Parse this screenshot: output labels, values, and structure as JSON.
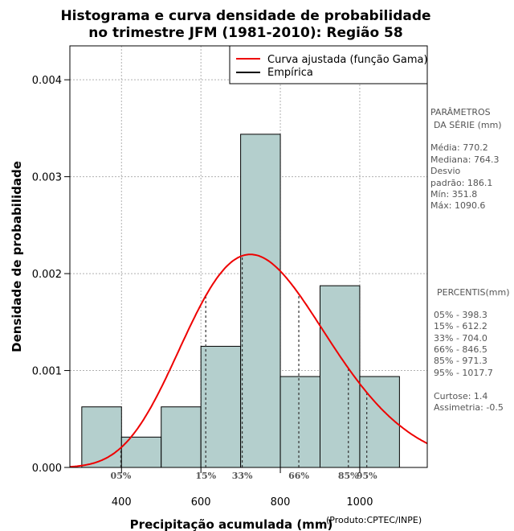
{
  "chart_data": {
    "type": "bar",
    "title_line1": "Histograma e curva densidade de probabilidade",
    "title_line2": "no trimestre JFM (1981-2010): Região 58",
    "xlabel": "Precipitação acumulada (mm)",
    "ylabel": "Densidade de probabilidade",
    "credit": "(Produto:CPTEC/INPE)",
    "xlim": [
      270,
      1170
    ],
    "ylim": [
      0,
      0.00435
    ],
    "x_ticks": [
      400,
      600,
      800,
      1000
    ],
    "y_ticks": [
      0.0,
      0.001,
      0.002,
      0.003,
      0.004
    ],
    "y_tick_labels": [
      "0.000",
      "0.001",
      "0.002",
      "0.003",
      "0.004"
    ],
    "bin_edges": [
      300,
      400,
      500,
      600,
      700,
      800,
      900,
      1000,
      1100
    ],
    "densities": [
      0.000625,
      0.000313,
      0.000625,
      0.00125,
      0.003438,
      0.000938,
      0.001875,
      0.000938
    ],
    "bar_color": "#b4cfcd",
    "curve_color": "#ee0000",
    "gamma_fit": {
      "shape": 17.1,
      "scale": 45.0
    },
    "legend": [
      {
        "label": "Curva ajustada (função Gama)",
        "color": "#ee0000"
      },
      {
        "label": "Empírica",
        "color": "#000000"
      }
    ],
    "percentiles": [
      {
        "label": "05%",
        "value": 398.3
      },
      {
        "label": "15%",
        "value": 612.2
      },
      {
        "label": "33%",
        "value": 704.0
      },
      {
        "label": "66%",
        "value": 846.5
      },
      {
        "label": "85%",
        "value": 971.3
      },
      {
        "label": "95%",
        "value": 1017.7
      }
    ]
  },
  "side_panel": {
    "params_title_1": "PARÂMETROS",
    "params_title_2": "DA SÉRIE (mm)",
    "media": "Média:  770.2",
    "mediana": "Mediana:  764.3",
    "desvio_1": "Desvio",
    "desvio_2": "padrão:  186.1",
    "min": "Mín:  351.8",
    "max": "Máx:  1090.6",
    "percentis_title": "PERCENTIS(mm)",
    "p05": "05% -  398.3",
    "p15": "15% -  612.2",
    "p33": "33% -  704.0",
    "p66": "66% -  846.5",
    "p85": "85% -  971.3",
    "p95": "95% -  1017.7",
    "curtose": "Curtose:  1.4",
    "assimetria": "Assimetria:  -0.5"
  }
}
